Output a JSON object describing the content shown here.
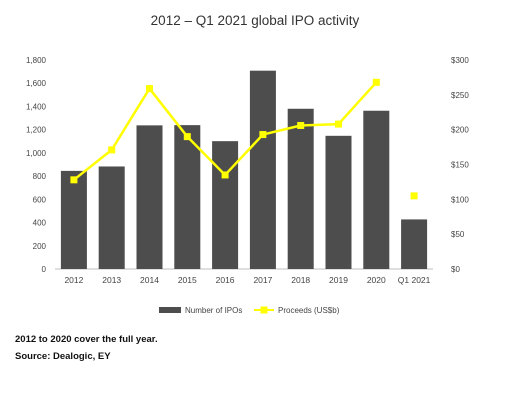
{
  "chart_data": {
    "type": "bar",
    "title": "2012 – Q1 2021 global IPO activity",
    "categories": [
      "2012",
      "2013",
      "2014",
      "2015",
      "2016",
      "2017",
      "2018",
      "2019",
      "2020",
      "Q1 2021"
    ],
    "series": [
      {
        "name": "Number of IPOs",
        "type": "bar",
        "axis": "left",
        "color": "#4d4d4d",
        "values": [
          845,
          883,
          1237,
          1239,
          1101,
          1708,
          1380,
          1147,
          1363,
          427
        ]
      },
      {
        "name": "Proceeds (US$b)",
        "type": "line",
        "axis": "right",
        "color": "#ffff00",
        "values": [
          128,
          171,
          259,
          190,
          135,
          193,
          206,
          208,
          268,
          105
        ],
        "line_breaks_before": [
          "Q1 2021"
        ]
      }
    ],
    "left_axis": {
      "min": 0,
      "max": 1800,
      "ticks": [
        "0",
        "200",
        "400",
        "600",
        "800",
        "1,000",
        "1,200",
        "1,400",
        "1,600",
        "1,800"
      ]
    },
    "right_axis": {
      "min": 0,
      "max": 300,
      "ticks": [
        "$0",
        "$50",
        "$100",
        "$150",
        "$200",
        "$250",
        "$300"
      ]
    },
    "legend": {
      "position": "bottom",
      "bar_label": "Number of IPOs",
      "line_label": "Proceeds (US$b)"
    },
    "grid": false
  },
  "notes": {
    "line1": "2012 to 2020 cover the full year.",
    "line2": "Source: Dealogic, EY"
  }
}
